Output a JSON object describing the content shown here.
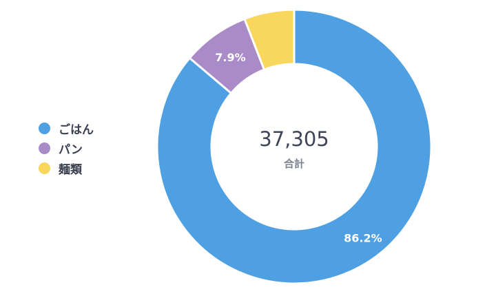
{
  "chart_data": {
    "type": "pie",
    "variant": "donut",
    "categories": [
      "ごはん",
      "パン",
      "麺類"
    ],
    "percentages": [
      86.2,
      7.9,
      5.9
    ],
    "data_labels": [
      "86.2%",
      "7.9%",
      ""
    ],
    "colors": [
      "#4f9fe3",
      "#a98bc8",
      "#f9d65c"
    ],
    "legend_position": "left",
    "total": {
      "value": "37,305",
      "label": "合計"
    }
  }
}
